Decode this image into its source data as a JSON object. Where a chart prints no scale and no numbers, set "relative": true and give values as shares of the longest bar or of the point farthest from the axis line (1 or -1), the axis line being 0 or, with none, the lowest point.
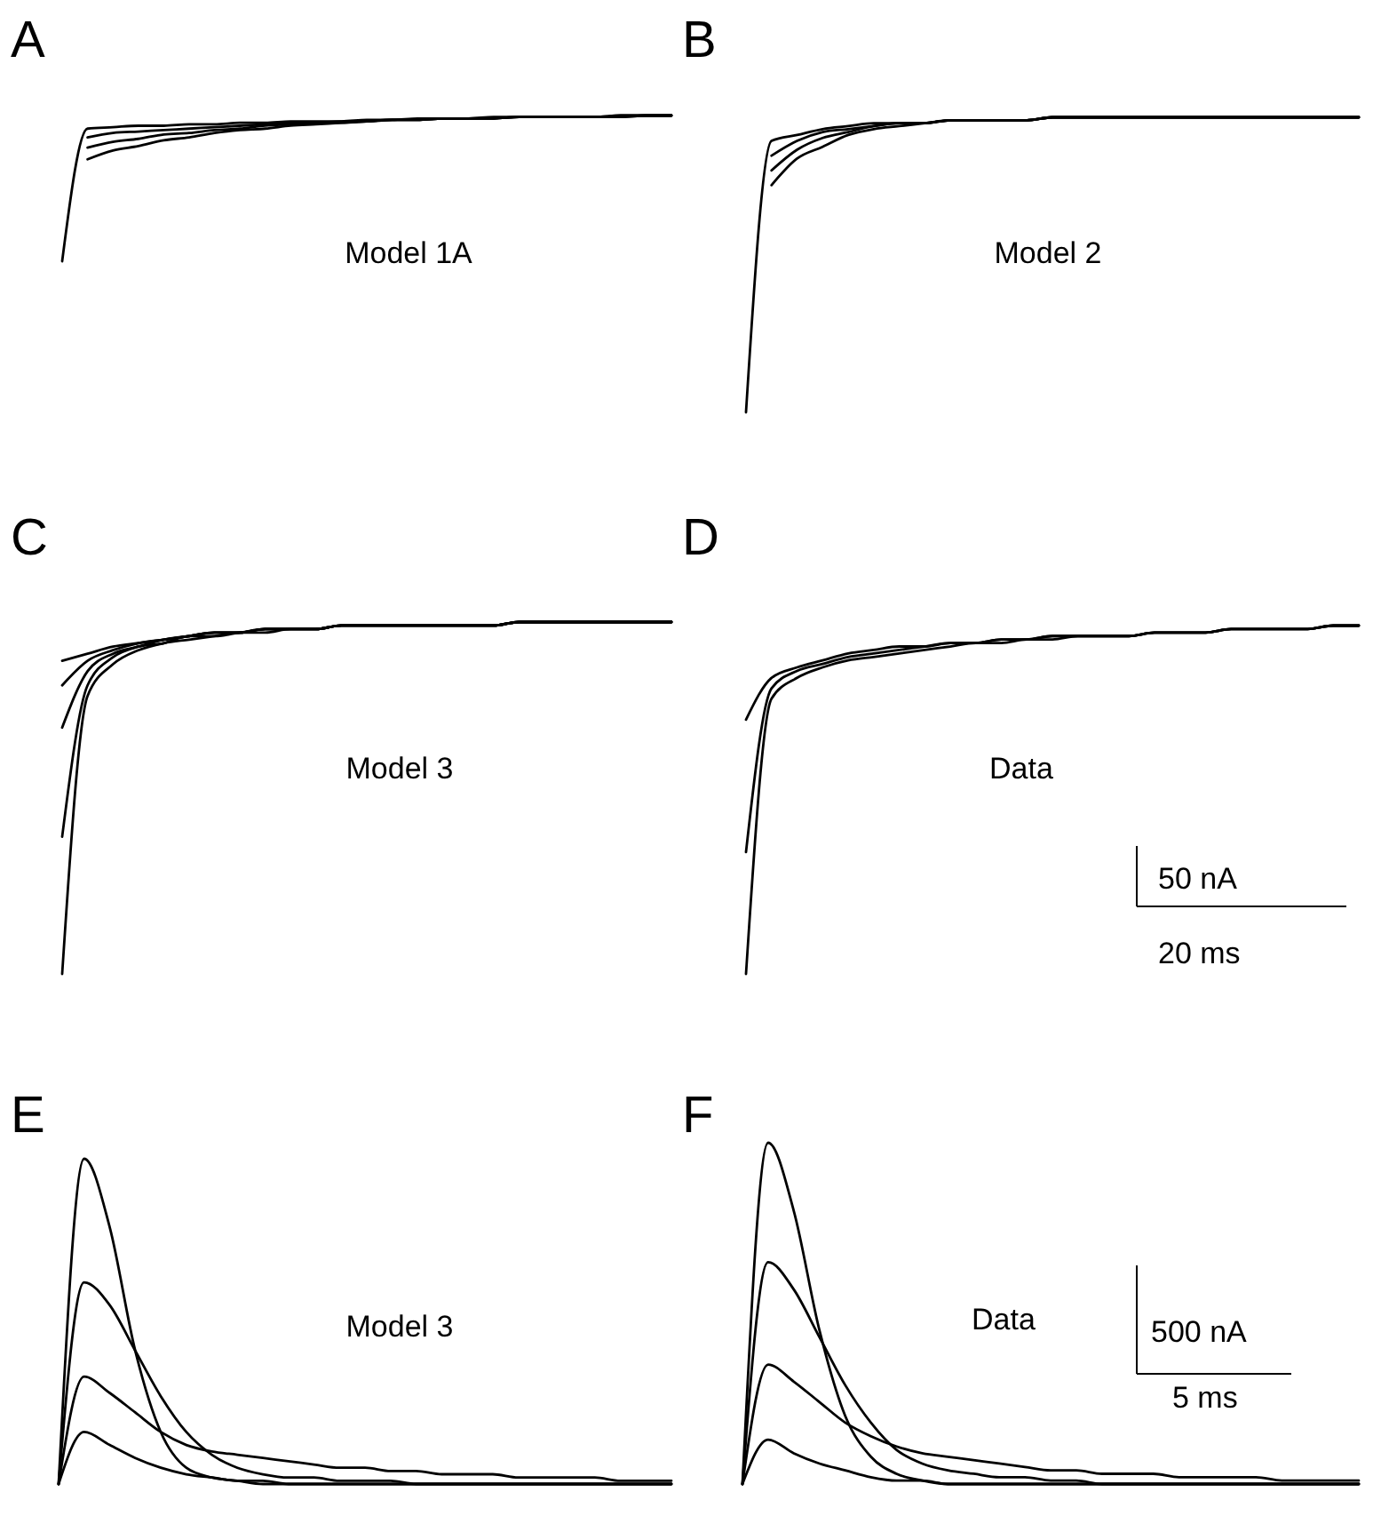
{
  "chart_data": [
    {
      "type": "line",
      "title": "A",
      "annotations": [
        "Model 1A"
      ],
      "relative": true,
      "categories": [
        null,
        null,
        null,
        null,
        null,
        null,
        null,
        null,
        null,
        null,
        null,
        null,
        null,
        null,
        null,
        null,
        null,
        null,
        null,
        null,
        null,
        null,
        null,
        null,
        null
      ],
      "series": [
        {
          "color": "#000000",
          "values": [
            0,
            0.91,
            0.92,
            0.93,
            0.93,
            0.94,
            0.94,
            0.95,
            0.95,
            0.96,
            0.96,
            0.96,
            0.97,
            0.97,
            0.98,
            0.98,
            0.98,
            0.98,
            0.99,
            0.99,
            0.99,
            0.99,
            0.99,
            1,
            1
          ]
        },
        {
          "color": "#000000",
          "values": [
            null,
            0.85,
            0.88,
            0.89,
            0.9,
            0.91,
            0.92,
            0.93,
            0.94,
            0.95,
            0.95,
            0.96,
            0.96,
            0.97,
            0.97,
            0.98,
            0.98,
            0.98,
            0.99,
            0.99,
            0.99,
            0.99,
            0.99,
            1,
            1
          ]
        },
        {
          "color": "#000000",
          "values": [
            null,
            0.78,
            0.82,
            0.84,
            0.87,
            0.88,
            0.9,
            0.91,
            0.93,
            0.94,
            0.95,
            0.95,
            0.96,
            0.97,
            0.97,
            0.98,
            0.98,
            0.98,
            0.99,
            0.99,
            0.99,
            0.99,
            1,
            1,
            1
          ]
        },
        {
          "color": "#000000",
          "values": [
            null,
            0.7,
            0.76,
            0.79,
            0.83,
            0.85,
            0.88,
            0.9,
            0.91,
            0.93,
            0.94,
            0.95,
            0.96,
            0.97,
            0.97,
            0.98,
            0.98,
            0.99,
            0.99,
            0.99,
            0.99,
            0.99,
            1,
            1,
            1
          ]
        }
      ]
    },
    {
      "type": "line",
      "title": "B",
      "annotations": [
        "Model 2"
      ],
      "relative": true,
      "categories": [
        null,
        null,
        null,
        null,
        null,
        null,
        null,
        null,
        null,
        null,
        null,
        null,
        null,
        null,
        null,
        null,
        null,
        null,
        null,
        null,
        null,
        null,
        null,
        null,
        null
      ],
      "series": [
        {
          "color": "#000000",
          "values": [
            0,
            0.92,
            0.94,
            0.96,
            0.97,
            0.98,
            0.98,
            0.98,
            0.99,
            0.99,
            0.99,
            0.99,
            1,
            1,
            1,
            1,
            1,
            1,
            1,
            1,
            1,
            1,
            1,
            1,
            1
          ]
        },
        {
          "color": "#000000",
          "values": [
            null,
            0.87,
            0.92,
            0.95,
            0.96,
            0.97,
            0.98,
            0.98,
            0.99,
            0.99,
            0.99,
            0.99,
            1,
            1,
            1,
            1,
            1,
            1,
            1,
            1,
            1,
            1,
            1,
            1,
            1
          ]
        },
        {
          "color": "#000000",
          "values": [
            null,
            0.82,
            0.89,
            0.93,
            0.95,
            0.97,
            0.98,
            0.98,
            0.99,
            0.99,
            0.99,
            0.99,
            1,
            1,
            1,
            1,
            1,
            1,
            1,
            1,
            1,
            1,
            1,
            1,
            1
          ]
        },
        {
          "color": "#000000",
          "values": [
            null,
            0.77,
            0.86,
            0.9,
            0.94,
            0.96,
            0.97,
            0.98,
            0.99,
            0.99,
            0.99,
            0.99,
            1,
            1,
            1,
            1,
            1,
            1,
            1,
            1,
            1,
            1,
            1,
            1,
            1
          ]
        }
      ]
    },
    {
      "type": "line",
      "title": "C",
      "annotations": [
        "Model 3"
      ],
      "relative": true,
      "categories": [
        null,
        null,
        null,
        null,
        null,
        null,
        null,
        null,
        null,
        null,
        null,
        null,
        null,
        null,
        null,
        null,
        null,
        null,
        null,
        null,
        null,
        null,
        null,
        null,
        null
      ],
      "series": [
        {
          "color": "#000000",
          "values": [
            0.89,
            0.91,
            0.93,
            0.94,
            0.95,
            0.96,
            0.97,
            0.97,
            0.98,
            0.98,
            0.98,
            0.99,
            0.99,
            0.99,
            0.99,
            0.99,
            0.99,
            0.99,
            1,
            1,
            1,
            1,
            1,
            1,
            1
          ]
        },
        {
          "color": "#000000",
          "values": [
            0.82,
            0.89,
            0.92,
            0.94,
            0.95,
            0.96,
            0.97,
            0.97,
            0.98,
            0.98,
            0.98,
            0.99,
            0.99,
            0.99,
            0.99,
            0.99,
            0.99,
            0.99,
            1,
            1,
            1,
            1,
            1,
            1,
            1
          ]
        },
        {
          "color": "#000000",
          "values": [
            0.7,
            0.86,
            0.91,
            0.93,
            0.95,
            0.96,
            0.97,
            0.97,
            0.98,
            0.98,
            0.98,
            0.99,
            0.99,
            0.99,
            0.99,
            0.99,
            0.99,
            0.99,
            1,
            1,
            1,
            1,
            1,
            1,
            1
          ]
        },
        {
          "color": "#000000",
          "values": [
            0.39,
            0.82,
            0.9,
            0.93,
            0.94,
            0.96,
            0.96,
            0.97,
            0.98,
            0.98,
            0.98,
            0.99,
            0.99,
            0.99,
            0.99,
            0.99,
            0.99,
            0.99,
            1,
            1,
            1,
            1,
            1,
            1,
            1
          ]
        },
        {
          "color": "#000000",
          "values": [
            0,
            0.79,
            0.88,
            0.92,
            0.94,
            0.95,
            0.96,
            0.97,
            0.97,
            0.98,
            0.98,
            0.99,
            0.99,
            0.99,
            0.99,
            0.99,
            0.99,
            0.99,
            1,
            1,
            1,
            1,
            1,
            1,
            1
          ]
        }
      ]
    },
    {
      "type": "line",
      "title": "D",
      "annotations": [
        "Data",
        "50 nA",
        "20 ms"
      ],
      "relative": true,
      "categories": [
        null,
        null,
        null,
        null,
        null,
        null,
        null,
        null,
        null,
        null,
        null,
        null,
        null,
        null,
        null,
        null,
        null,
        null,
        null,
        null,
        null,
        null,
        null,
        null,
        null
      ],
      "series": [
        {
          "color": "#000000",
          "values": [
            0.73,
            0.85,
            0.88,
            0.9,
            0.92,
            0.93,
            0.94,
            0.94,
            0.95,
            0.95,
            0.96,
            0.96,
            0.97,
            0.97,
            0.97,
            0.97,
            0.98,
            0.98,
            0.98,
            0.99,
            0.99,
            0.99,
            0.99,
            1,
            1
          ]
        },
        {
          "color": "#000000",
          "values": [
            0.35,
            0.82,
            0.87,
            0.89,
            0.91,
            0.92,
            0.93,
            0.94,
            0.95,
            0.95,
            0.96,
            0.96,
            0.97,
            0.97,
            0.97,
            0.97,
            0.98,
            0.98,
            0.98,
            0.99,
            0.99,
            0.99,
            0.99,
            1,
            1
          ]
        },
        {
          "color": "#000000",
          "values": [
            0,
            0.79,
            0.85,
            0.88,
            0.9,
            0.91,
            0.92,
            0.93,
            0.94,
            0.95,
            0.95,
            0.96,
            0.96,
            0.97,
            0.97,
            0.97,
            0.98,
            0.98,
            0.98,
            0.99,
            0.99,
            0.99,
            0.99,
            1,
            1
          ]
        }
      ]
    },
    {
      "type": "line",
      "title": "E",
      "annotations": [
        "Model 3"
      ],
      "relative": true,
      "categories": [
        null,
        null,
        null,
        null,
        null,
        null,
        null,
        null,
        null,
        null,
        null,
        null,
        null,
        null,
        null,
        null,
        null,
        null,
        null,
        null,
        null,
        null,
        null,
        null,
        null
      ],
      "series": [
        {
          "color": "#000000",
          "values": [
            0,
            1,
            0.79,
            0.41,
            0.16,
            0.05,
            0.02,
            0.01,
            0,
            0,
            0,
            0,
            0,
            0,
            0,
            0,
            0,
            0,
            0,
            0,
            0,
            0,
            0,
            0,
            0
          ]
        },
        {
          "color": "#000000",
          "values": [
            0,
            0.62,
            0.55,
            0.41,
            0.27,
            0.16,
            0.09,
            0.05,
            0.03,
            0.02,
            0.02,
            0.01,
            0.01,
            0.01,
            0,
            0,
            0,
            0,
            0,
            0,
            0,
            0,
            0,
            0,
            0
          ]
        },
        {
          "color": "#000000",
          "values": [
            0,
            0.33,
            0.28,
            0.22,
            0.16,
            0.12,
            0.1,
            0.09,
            0.08,
            0.07,
            0.06,
            0.05,
            0.05,
            0.04,
            0.04,
            0.03,
            0.03,
            0.03,
            0.02,
            0.02,
            0.02,
            0.02,
            0.01,
            0.01,
            0.01
          ]
        },
        {
          "color": "#000000",
          "values": [
            0,
            0.16,
            0.12,
            0.08,
            0.05,
            0.03,
            0.02,
            0.01,
            0.01,
            0,
            0,
            0,
            0,
            0,
            0,
            0,
            0,
            0,
            0,
            0,
            0,
            0,
            0,
            0,
            0
          ]
        }
      ]
    },
    {
      "type": "line",
      "title": "F",
      "annotations": [
        "Data",
        "500 nA",
        "5 ms"
      ],
      "relative": true,
      "categories": [
        null,
        null,
        null,
        null,
        null,
        null,
        null,
        null,
        null,
        null,
        null,
        null,
        null,
        null,
        null,
        null,
        null,
        null,
        null,
        null,
        null,
        null,
        null,
        null,
        null
      ],
      "series": [
        {
          "color": "#000000",
          "values": [
            0,
            1,
            0.8,
            0.45,
            0.2,
            0.08,
            0.03,
            0.01,
            0,
            0,
            0,
            0,
            0,
            0,
            0,
            0,
            0,
            0,
            0,
            0,
            0,
            0,
            0,
            0,
            0
          ]
        },
        {
          "color": "#000000",
          "values": [
            0,
            0.65,
            0.57,
            0.43,
            0.29,
            0.18,
            0.1,
            0.06,
            0.04,
            0.03,
            0.02,
            0.02,
            0.01,
            0.01,
            0,
            0,
            0,
            0,
            0,
            0,
            0,
            0,
            0,
            0,
            0
          ]
        },
        {
          "color": "#000000",
          "values": [
            0,
            0.35,
            0.3,
            0.24,
            0.18,
            0.14,
            0.11,
            0.09,
            0.08,
            0.07,
            0.06,
            0.05,
            0.04,
            0.04,
            0.03,
            0.03,
            0.03,
            0.02,
            0.02,
            0.02,
            0.02,
            0.01,
            0.01,
            0.01,
            0.01
          ]
        },
        {
          "color": "#000000",
          "values": [
            0,
            0.13,
            0.09,
            0.06,
            0.04,
            0.02,
            0.01,
            0.01,
            0,
            0,
            0,
            0,
            0,
            0,
            0,
            0,
            0,
            0,
            0,
            0,
            0,
            0,
            0,
            0,
            0
          ]
        }
      ]
    }
  ]
}
